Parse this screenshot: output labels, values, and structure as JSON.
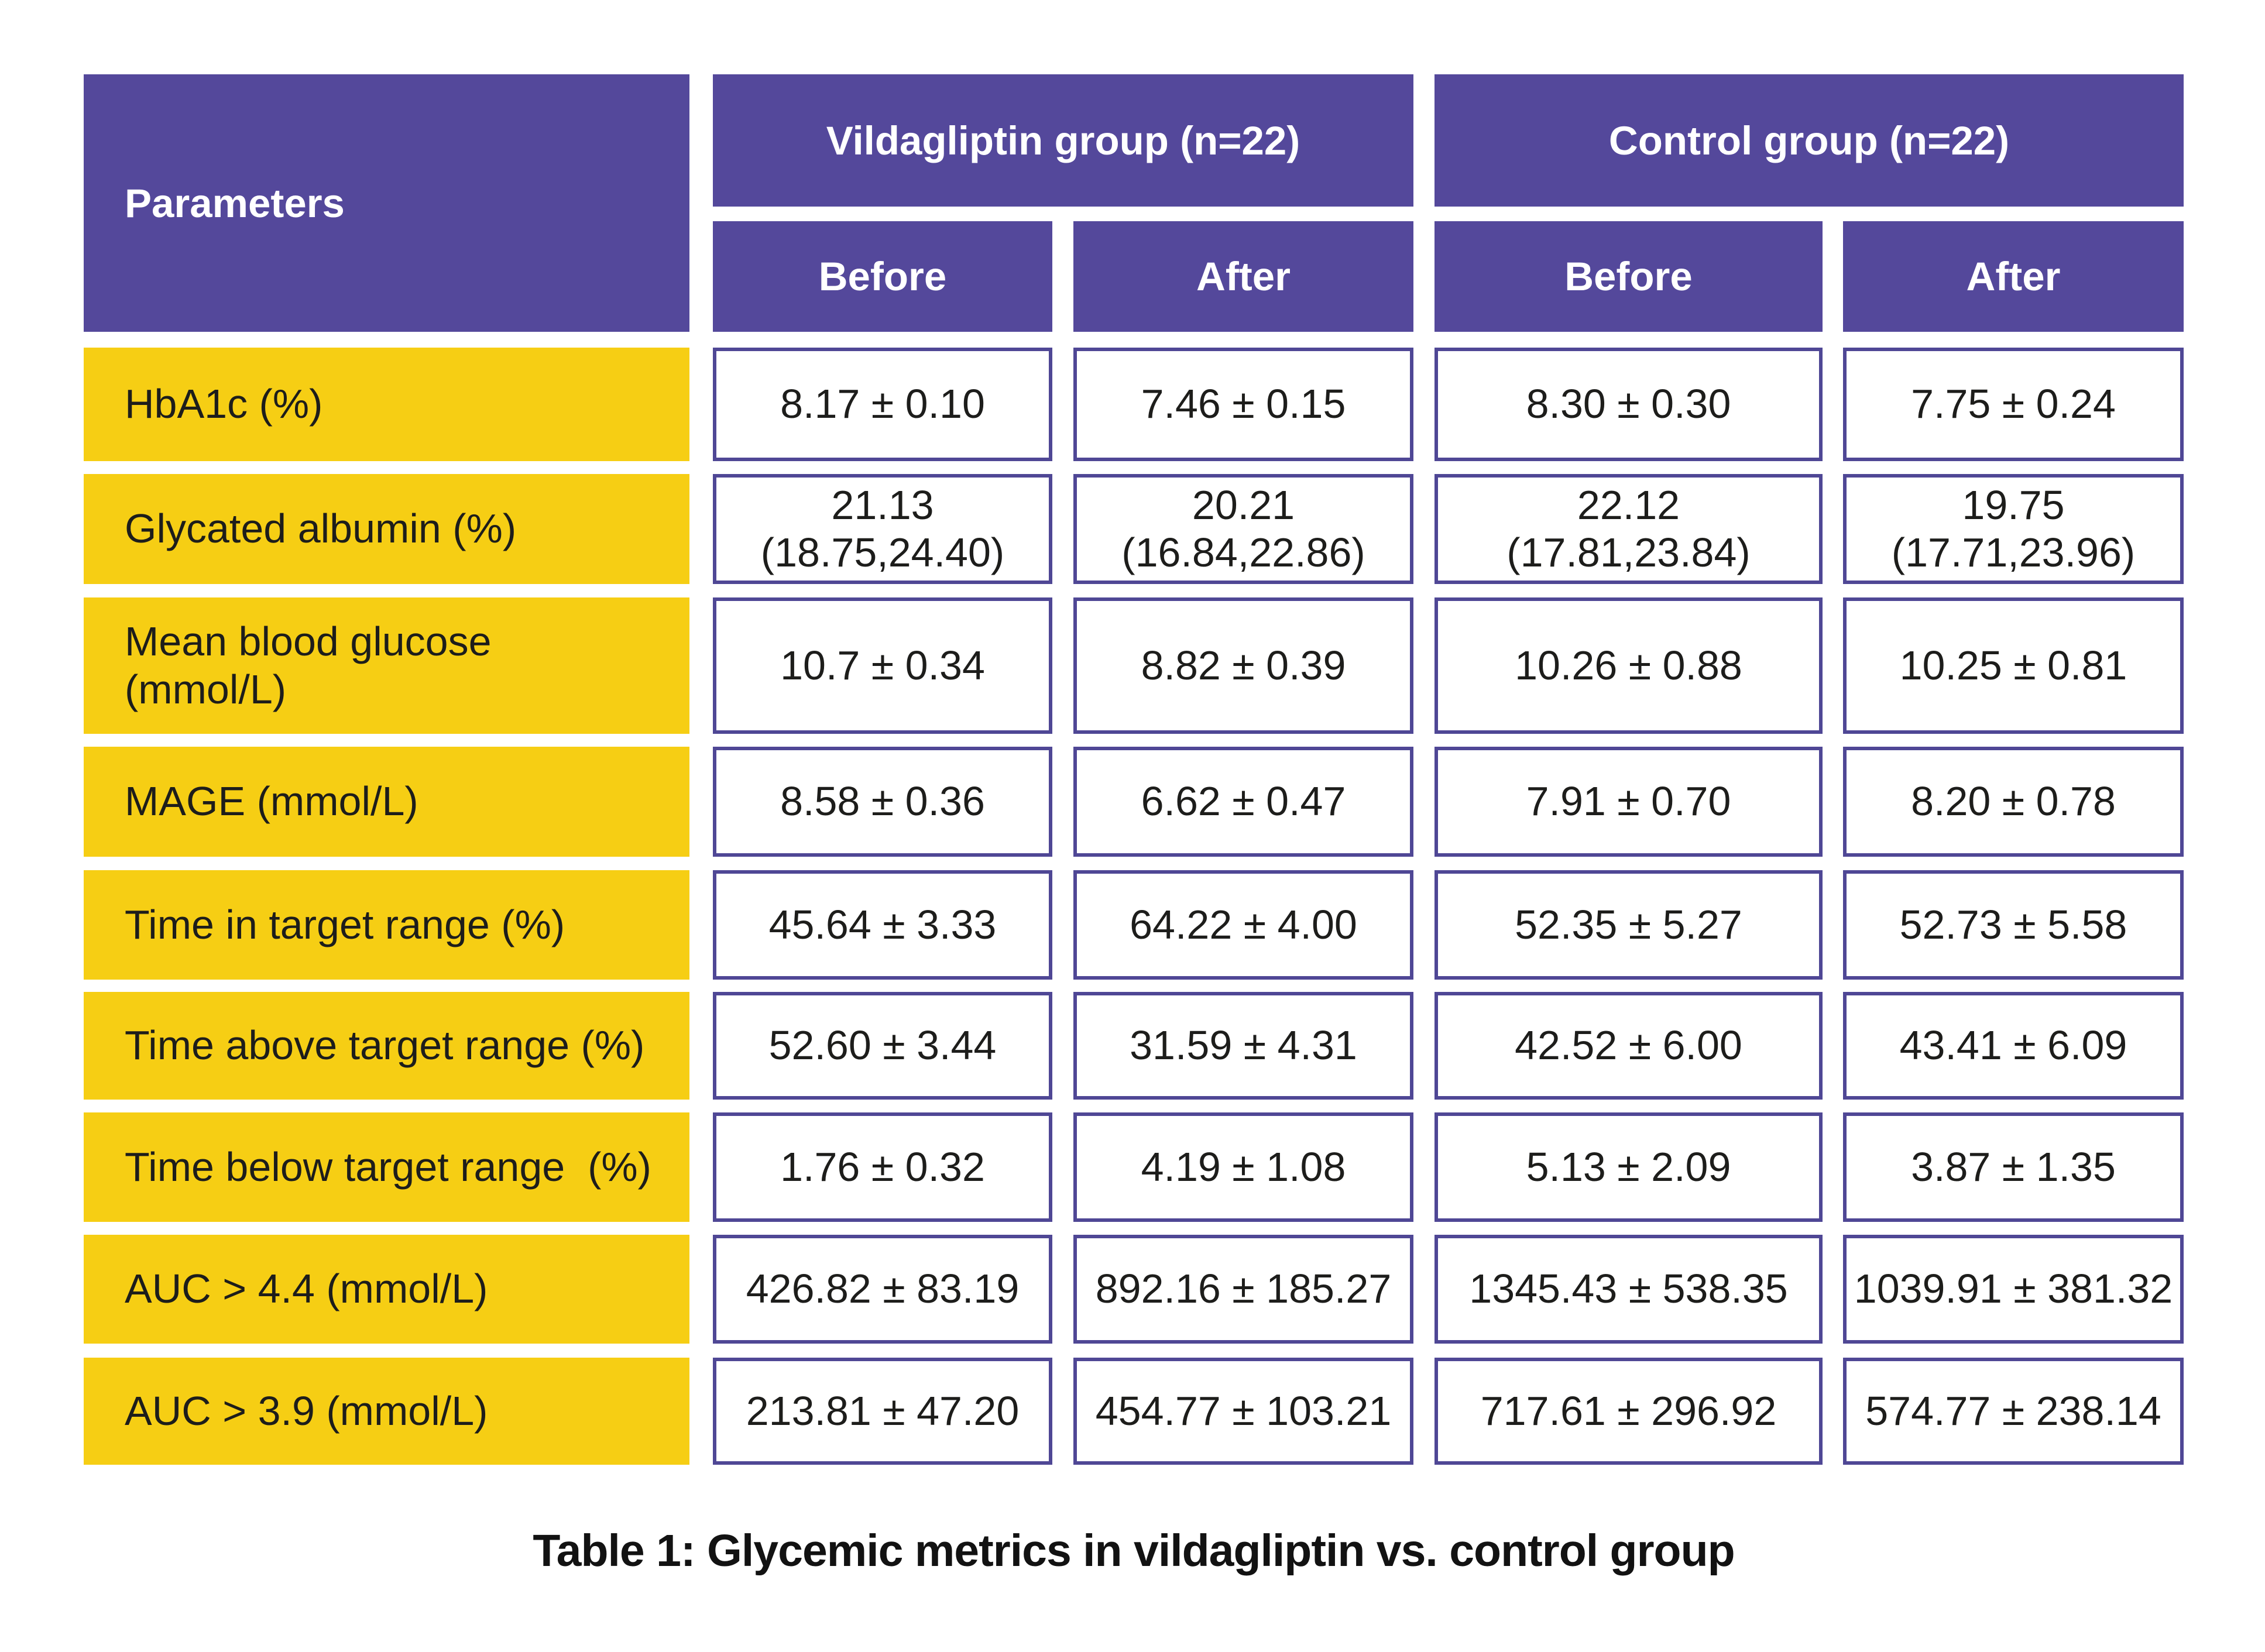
{
  "chart_data": {
    "type": "table",
    "title": "Table 1: Glycemic metrics in vildagliptin vs. control group",
    "column_groups": [
      "Vildagliptin group (n=22)",
      "Control group (n=22)"
    ],
    "columns": [
      "Parameters",
      "Before",
      "After",
      "Before",
      "After"
    ],
    "rows": [
      [
        "HbA1c (%)",
        "8.17 ± 0.10",
        "7.46 ± 0.15",
        "8.30 ± 0.30",
        "7.75 ± 0.24"
      ],
      [
        "Glycated albumin (%)",
        "21.13 (18.75,24.40)",
        "20.21 (16.84,22.86)",
        "22.12 (17.81,23.84)",
        "19.75 (17.71,23.96)"
      ],
      [
        "Mean blood glucose (mmol/L)",
        "10.7 ± 0.34",
        "8.82 ± 0.39",
        "10.26 ± 0.88",
        "10.25 ± 0.81"
      ],
      [
        "MAGE (mmol/L)",
        "8.58 ± 0.36",
        "6.62 ± 0.47",
        "7.91 ± 0.70",
        "8.20 ± 0.78"
      ],
      [
        "Time in target range (%)",
        "45.64 ± 3.33",
        "64.22 ± 4.00",
        "52.35 ± 5.27",
        "52.73 ± 5.58"
      ],
      [
        "Time above target range (%)",
        "52.60 ± 3.44",
        "31.59 ± 4.31",
        "42.52 ± 6.00",
        "43.41 ± 6.09"
      ],
      [
        "Time below target range (%)",
        "1.76 ± 0.32",
        "4.19 ± 1.08",
        "5.13 ± 2.09",
        "3.87 ± 1.35"
      ],
      [
        "AUC > 4.4 (mmol/L)",
        "426.82 ± 83.19",
        "892.16 ± 185.27",
        "1345.43 ± 538.35",
        "1039.91 ± 381.32"
      ],
      [
        "AUC > 3.9 (mmol/L)",
        "213.81 ± 47.20",
        "454.77 ± 103.21",
        "717.61 ± 296.92",
        "574.77 ± 238.14"
      ]
    ]
  },
  "colors": {
    "purple": "#54489B",
    "purple-border": "#4F4795",
    "yellow": "#F6CE14",
    "ink": "#1D1D1B",
    "paper": "#FFFFFF"
  },
  "table": {
    "header": {
      "parameters_label": "Parameters",
      "group_1": "Vildagliptin group (n=22)",
      "group_2": "Control group (n=22)",
      "sub_1": "Before",
      "sub_2": "After",
      "sub_3": "Before",
      "sub_4": "After"
    },
    "rows": [
      {
        "parameter": "HbA1c (%)",
        "values": [
          "8.17 ± 0.10",
          "7.46 ± 0.15",
          "8.30 ± 0.30",
          "7.75 ± 0.24"
        ]
      },
      {
        "parameter": "Glycated albumin (%)",
        "values": [
          "21.13\n(18.75,24.40)",
          "20.21\n(16.84,22.86)",
          "22.12\n(17.81,23.84)",
          "19.75\n(17.71,23.96)"
        ]
      },
      {
        "parameter": "Mean blood glucose\n(mmol/L)",
        "values": [
          "10.7 ± 0.34",
          "8.82 ± 0.39",
          "10.26 ± 0.88",
          "10.25 ± 0.81"
        ]
      },
      {
        "parameter": "MAGE (mmol/L)",
        "values": [
          "8.58 ± 0.36",
          "6.62 ± 0.47",
          "7.91 ± 0.70",
          "8.20 ± 0.78"
        ]
      },
      {
        "parameter": "Time in target range (%)",
        "values": [
          "45.64 ± 3.33",
          "64.22 ± 4.00",
          "52.35 ± 5.27",
          "52.73 ± 5.58"
        ]
      },
      {
        "parameter": "Time above target range (%)",
        "values": [
          "52.60 ± 3.44",
          "31.59 ± 4.31",
          "42.52 ± 6.00",
          "43.41 ± 6.09"
        ]
      },
      {
        "parameter": "Time below target range  (%)",
        "values": [
          "1.76 ± 0.32",
          "4.19 ± 1.08",
          "5.13 ± 2.09",
          "3.87 ± 1.35"
        ]
      },
      {
        "parameter": "AUC > 4.4 (mmol/L)",
        "values": [
          "426.82 ± 83.19",
          "892.16 ± 185.27",
          "1345.43 ± 538.35",
          "1039.91 ± 381.32"
        ]
      },
      {
        "parameter": "AUC > 3.9 (mmol/L)",
        "values": [
          "213.81 ± 47.20",
          "454.77 ± 103.21",
          "717.61 ± 296.92",
          "574.77 ± 238.14"
        ]
      }
    ],
    "caption": "Table 1: Glycemic metrics in vildagliptin vs. control group"
  }
}
